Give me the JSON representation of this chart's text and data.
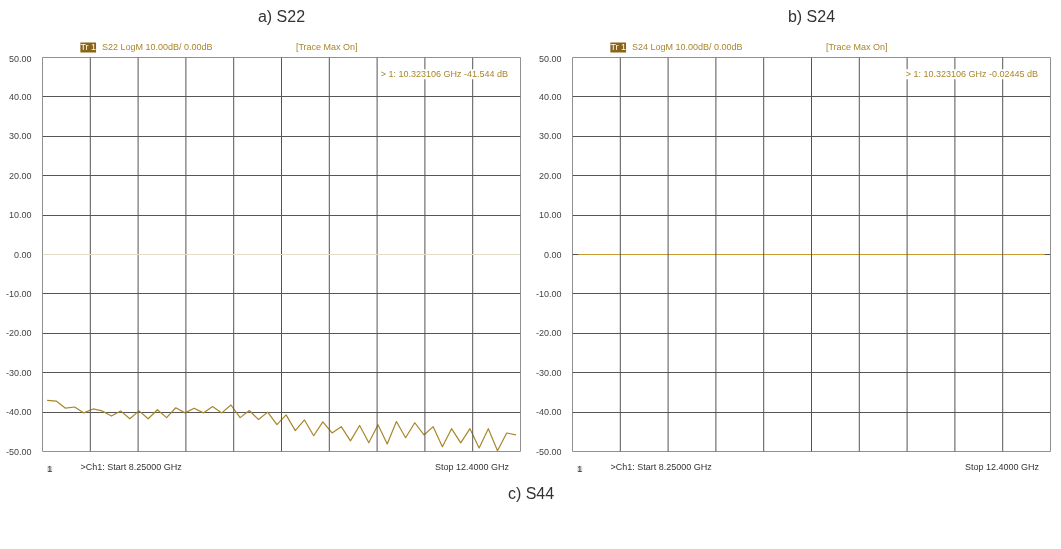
{
  "chart_data": [
    {
      "type": "line",
      "title": "a) S22",
      "categories": [
        null,
        null,
        null,
        null,
        null,
        null,
        null,
        null,
        null,
        null,
        null,
        null,
        null,
        null,
        null,
        null,
        null,
        null,
        null,
        null,
        null,
        null,
        null,
        null,
        null,
        null,
        null,
        null,
        null,
        null,
        null,
        null,
        null,
        null,
        null,
        null,
        null,
        null,
        null,
        null,
        null,
        null,
        null,
        null,
        null,
        null,
        null,
        null,
        null,
        null,
        null,
        null
      ],
      "series": [
        {
          "color": "#a8862a",
          "values": [
            -37.0,
            -37.2,
            -39.0,
            -38.7,
            -40.2,
            -39.2,
            -39.7,
            -41.0,
            -39.7,
            -41.7,
            -39.7,
            -41.7,
            -39.4,
            -41.4,
            -38.9,
            -40.2,
            -39.0,
            -40.2,
            -38.6,
            -40.2,
            -38.2,
            -41.4,
            -39.6,
            -41.9,
            -40.0,
            -43.2,
            -40.7,
            -44.7,
            -42.0,
            -46.0,
            -42.5,
            -45.3,
            -43.7,
            -47.3,
            -43.4,
            -47.8,
            -43.2,
            -48.1,
            -42.4,
            -46.5,
            -42.7,
            -45.8,
            -43.7,
            -48.8,
            -44.2,
            -47.8,
            -44.2,
            -49.1,
            -44.2,
            -49.8,
            -45.3,
            -45.8
          ]
        }
      ],
      "ylim": [
        -50,
        50
      ],
      "yticks": [
        {
          "value": 50,
          "label": "50.00"
        },
        {
          "value": 40,
          "label": "40.00"
        },
        {
          "value": 30,
          "label": "30.00"
        },
        {
          "value": 20,
          "label": "20.00"
        },
        {
          "value": 10,
          "label": "10.00"
        },
        {
          "value": 0,
          "label": "0.00"
        },
        {
          "value": -10,
          "label": "-10.00"
        },
        {
          "value": -20,
          "label": "-20.00"
        },
        {
          "value": -30,
          "label": "-30.00"
        },
        {
          "value": -40,
          "label": "-40.00"
        },
        {
          "value": -50,
          "label": "-50.00"
        }
      ],
      "ref_lines": [
        {
          "axis": "y",
          "value": 0,
          "color": "#e0dcc8"
        }
      ],
      "grid": true,
      "marker": "none",
      "line_style": "solid",
      "annotations": [
        "Tr 1",
        "S22 LogM 10.00dB/ 0.00dB",
        "[Trace Max On]",
        "> 1:   10.323106 GHz   -41.544 dB",
        "1",
        ">Ch1: Start  8.25000 GHz",
        "Stop  12.4000 GHz"
      ]
    },
    {
      "type": "line",
      "title": "b) S24",
      "categories": [
        null,
        null,
        null,
        null,
        null,
        null,
        null,
        null,
        null,
        null,
        null,
        null,
        null,
        null,
        null,
        null,
        null,
        null,
        null,
        null,
        null,
        null,
        null,
        null,
        null,
        null,
        null,
        null,
        null,
        null,
        null,
        null,
        null,
        null,
        null,
        null,
        null,
        null,
        null,
        null,
        null
      ],
      "series": [
        {
          "color": "#c89a30",
          "values": [
            0,
            0,
            0,
            0,
            0,
            0,
            0,
            0,
            0,
            0,
            0,
            0,
            0,
            0,
            0,
            0,
            0,
            0,
            0,
            0,
            0,
            0,
            0,
            0,
            0,
            0,
            0,
            0,
            0,
            0,
            0,
            0,
            0,
            0,
            0,
            0,
            0,
            0,
            0,
            0,
            0
          ]
        }
      ],
      "ylim": [
        -50,
        50
      ],
      "yticks": [
        {
          "value": 50,
          "label": "50.00"
        },
        {
          "value": 40,
          "label": "40.00"
        },
        {
          "value": 30,
          "label": "30.00"
        },
        {
          "value": 20,
          "label": "20.00"
        },
        {
          "value": 10,
          "label": "10.00"
        },
        {
          "value": 0,
          "label": "0.00"
        },
        {
          "value": -10,
          "label": "-10.00"
        },
        {
          "value": -20,
          "label": "-20.00"
        },
        {
          "value": -30,
          "label": "-30.00"
        },
        {
          "value": -40,
          "label": "-40.00"
        },
        {
          "value": -50,
          "label": "-50.00"
        }
      ],
      "grid": true,
      "marker": "none",
      "line_style": "solid",
      "annotations": [
        "Tr 1",
        "S24 LogM 10.00dB/ 0.00dB",
        "[Trace Max On]",
        "> 1:   10.323106 GHz   -0.02445 dB",
        "1",
        ">Ch1: Start  8.25000 GHz",
        "Stop  12.4000 GHz"
      ]
    },
    {
      "type": "other",
      "title": "c) S44"
    }
  ]
}
